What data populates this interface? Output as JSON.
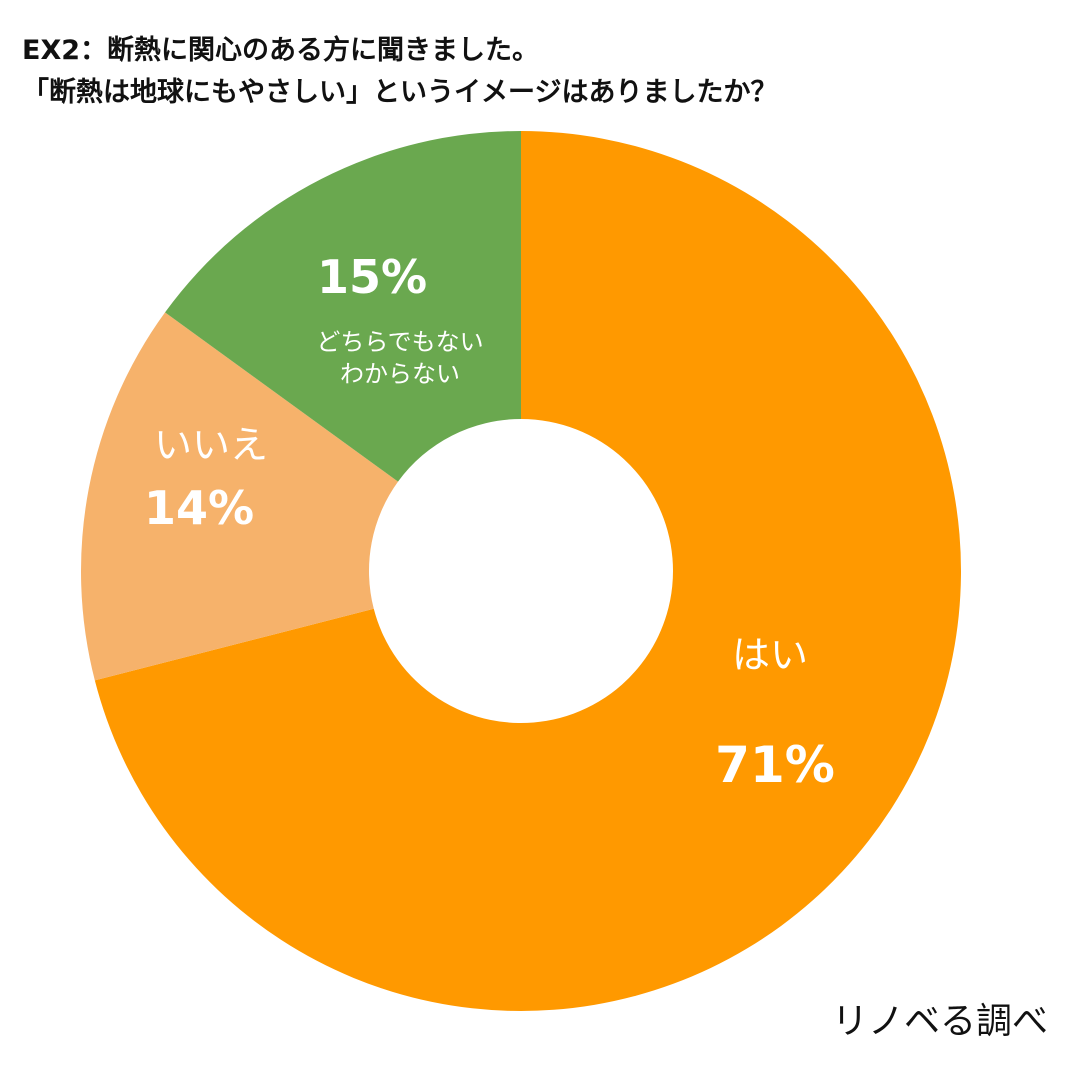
{
  "chart_data": {
    "type": "pie",
    "style": "donut",
    "title_lines": [
      "EX2：断熱に関心のある方に聞きました。",
      "「断熱は地球にもやさしい」というイメージはありましたか？"
    ],
    "slices": [
      {
        "label": "はい",
        "value": 71,
        "value_label": "71%",
        "color": "#ff9900"
      },
      {
        "label": "いいえ",
        "value": 14,
        "value_label": "14%",
        "color": "#f6b26b"
      },
      {
        "label": "どちらでもない\nわからない",
        "value": 15,
        "value_label": "15%",
        "color": "#6aa84f"
      }
    ],
    "start_angle_deg": 0,
    "direction": "clockwise"
  },
  "source": "リノベる調べ"
}
